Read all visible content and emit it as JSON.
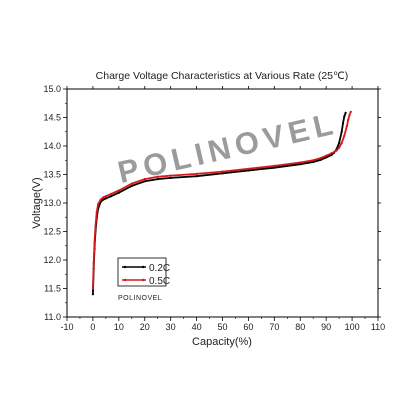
{
  "chart_data": {
    "type": "line",
    "title": "Charge Voltage Characteristics at Various Rate (25℃)",
    "xlabel": "Capacity(%)",
    "ylabel": "Voltage(V)",
    "xlim": [
      -10,
      110
    ],
    "ylim": [
      11.0,
      15.0
    ],
    "xticks": [
      -10,
      0,
      10,
      20,
      30,
      40,
      50,
      60,
      70,
      80,
      90,
      100,
      110
    ],
    "yticks": [
      11.0,
      11.5,
      12.0,
      12.5,
      13.0,
      13.5,
      14.0,
      14.5,
      15.0
    ],
    "grid": false,
    "legend_position": "bottom-left",
    "watermark": "POLINOVEL",
    "logo_text": "POLINOVEL",
    "series": [
      {
        "name": "0.2C",
        "color": "#000000",
        "x": [
          0,
          0.3,
          0.6,
          1,
          1.5,
          2,
          3,
          4,
          5,
          7,
          10,
          15,
          20,
          25,
          30,
          40,
          50,
          60,
          70,
          80,
          85,
          88,
          90,
          92,
          93,
          94,
          95,
          96,
          96.5,
          97,
          97.5
        ],
        "y": [
          11.4,
          11.85,
          12.2,
          12.5,
          12.75,
          12.9,
          13.02,
          13.06,
          13.08,
          13.12,
          13.18,
          13.3,
          13.38,
          13.42,
          13.44,
          13.47,
          13.52,
          13.57,
          13.62,
          13.68,
          13.72,
          13.76,
          13.8,
          13.84,
          13.88,
          13.94,
          14.05,
          14.25,
          14.4,
          14.52,
          14.58
        ]
      },
      {
        "name": "0.5C",
        "color": "#d7191c",
        "x": [
          0,
          0.3,
          0.6,
          1,
          1.5,
          2,
          3,
          4,
          5,
          7,
          10,
          15,
          20,
          25,
          30,
          40,
          50,
          60,
          70,
          80,
          85,
          88,
          90,
          92,
          94,
          95,
          96,
          97,
          98,
          98.5,
          99,
          99.5
        ],
        "y": [
          11.5,
          11.95,
          12.3,
          12.6,
          12.85,
          12.98,
          13.06,
          13.1,
          13.12,
          13.16,
          13.22,
          13.34,
          13.42,
          13.46,
          13.48,
          13.51,
          13.55,
          13.6,
          13.65,
          13.71,
          13.75,
          13.79,
          13.83,
          13.87,
          13.92,
          13.97,
          14.05,
          14.18,
          14.35,
          14.46,
          14.54,
          14.6
        ]
      }
    ]
  }
}
